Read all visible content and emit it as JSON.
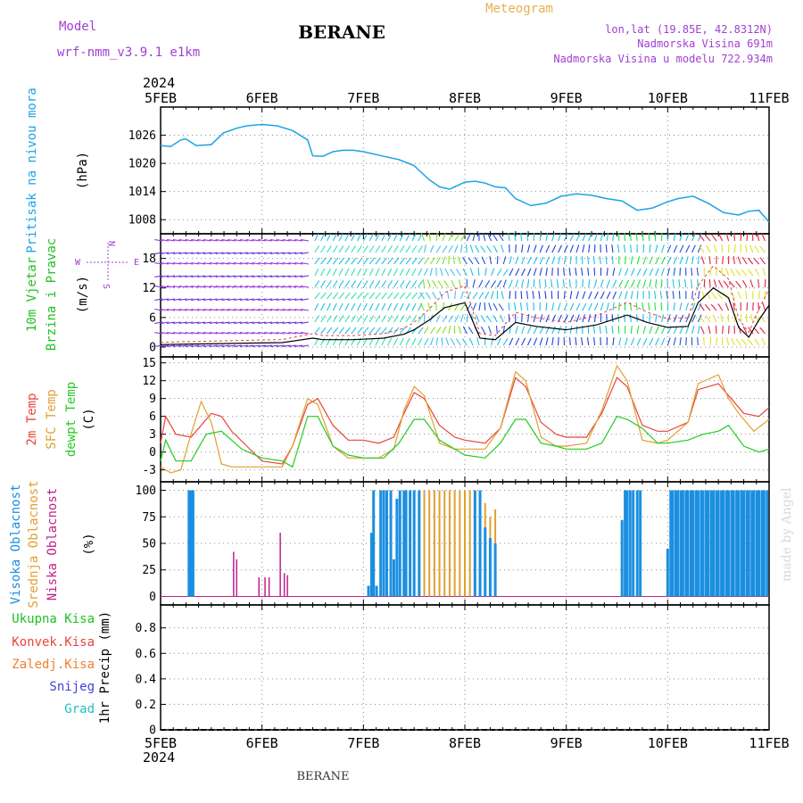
{
  "header": {
    "title": "BERANE",
    "meteogram": "Meteogram",
    "model_label": "Model",
    "model_name": "wrf-nmm_v3.9.1  e1km",
    "lonlat": "lon,lat (19.85E, 42.8312N)",
    "elevation": "Nadmorska Visina 691m",
    "model_elevation": "Nadmorska Visina u modelu 722.934m",
    "watermark": "made by Angel",
    "footer": "BERANE"
  },
  "colors": {
    "pressure": "#1ba3e6",
    "wind_label": "#20c020",
    "temp_2m": "#e8443a",
    "temp_sfc": "#e0a030",
    "dewpoint": "#22cc22",
    "cloud_high": "#1b8fe0",
    "cloud_mid": "#e0a030",
    "cloud_low": "#c0208a",
    "model_purple": "#a040d0",
    "meteogram_orange": "#e6b050"
  },
  "chart_data": [
    {
      "type": "line",
      "panel": "pressure",
      "year_top": "2024",
      "year_bottom": "2024",
      "date_ticks": [
        "5FEB",
        "6FEB",
        "7FEB",
        "8FEB",
        "9FEB",
        "10FEB",
        "11FEB"
      ],
      "ylabel_lines": [
        "Pritisak na nivou mora",
        "(hPa)"
      ],
      "yticks": [
        "1026",
        "1020",
        "1014",
        "1008"
      ],
      "ylim": [
        1005,
        1032
      ],
      "series": [
        {
          "x": [
            0,
            0.1,
            0.2,
            0.25,
            0.35,
            0.5,
            0.62,
            0.75,
            0.85,
            1.0,
            1.15,
            1.3,
            1.45,
            1.5,
            1.6,
            1.7,
            1.8,
            1.9,
            2.0,
            2.2,
            2.35,
            2.5,
            2.55,
            2.65,
            2.75,
            2.85,
            2.95,
            3.0,
            3.1,
            3.2,
            3.3,
            3.4,
            3.5,
            3.65,
            3.8,
            3.95,
            4.1,
            4.25,
            4.4,
            4.55,
            4.7,
            4.85,
            5.0,
            5.1,
            5.25,
            5.4,
            5.55,
            5.7,
            5.8,
            5.9,
            6.0
          ],
          "y": [
            1023.8,
            1023.6,
            1025.0,
            1025.2,
            1023.8,
            1024.0,
            1026.5,
            1027.5,
            1028.0,
            1028.3,
            1028.0,
            1027.0,
            1025.0,
            1021.6,
            1021.5,
            1022.5,
            1022.8,
            1022.8,
            1022.5,
            1021.5,
            1020.8,
            1019.5,
            1018.5,
            1016.5,
            1015.0,
            1014.5,
            1015.5,
            1016.0,
            1016.2,
            1015.8,
            1015.0,
            1014.8,
            1012.5,
            1011.0,
            1011.5,
            1013.0,
            1013.5,
            1013.2,
            1012.5,
            1012.0,
            1010.0,
            1010.5,
            1011.8,
            1012.5,
            1013.0,
            1011.5,
            1009.5,
            1009.0,
            1009.8,
            1010.0,
            1007.5
          ]
        }
      ]
    },
    {
      "type": "line",
      "panel": "wind",
      "ylabel_lines": [
        "10m Vjetar",
        "Brzina i Pravac",
        "(m/s)"
      ],
      "compass": [
        "N",
        "E",
        "W",
        "S"
      ],
      "yticks": [
        "18",
        "12",
        "6",
        "0"
      ],
      "ylim": [
        -2,
        23
      ],
      "series": [
        {
          "x": [
            0,
            0.3,
            0.6,
            0.9,
            1.2,
            1.5,
            1.6,
            1.9,
            2.2,
            2.4,
            2.5,
            2.65,
            2.8,
            3.0,
            3.15,
            3.3,
            3.5,
            3.7,
            4.0,
            4.3,
            4.6,
            4.8,
            5.0,
            5.2,
            5.3,
            5.45,
            5.6,
            5.7,
            5.8,
            5.9,
            6.0
          ],
          "y": [
            0.5,
            0.6,
            0.7,
            0.8,
            0.9,
            1.8,
            1.5,
            1.5,
            1.8,
            2.6,
            3.5,
            5.5,
            8.0,
            9.0,
            1.8,
            1.5,
            5.0,
            4.2,
            3.5,
            4.5,
            6.5,
            5.0,
            4.0,
            4.2,
            9.0,
            12.0,
            10.0,
            4.0,
            2.0,
            5.5,
            8.5
          ]
        }
      ]
    },
    {
      "type": "line",
      "panel": "temperature",
      "ylabel_lines": [
        "2m Temp",
        "SFC Temp",
        "dewpt Temp",
        "(C)"
      ],
      "yticks": [
        "15",
        "12",
        "9",
        "6",
        "3",
        "0",
        "-3"
      ],
      "ylim": [
        -5,
        16
      ],
      "series": [
        {
          "name": "2m Temp",
          "x": [
            0,
            0.05,
            0.15,
            0.3,
            0.4,
            0.5,
            0.6,
            0.7,
            0.85,
            1.0,
            1.2,
            1.3,
            1.45,
            1.55,
            1.7,
            1.85,
            2.0,
            2.15,
            2.3,
            2.4,
            2.5,
            2.6,
            2.75,
            2.9,
            3.0,
            3.2,
            3.35,
            3.5,
            3.6,
            3.75,
            3.9,
            4.0,
            4.2,
            4.35,
            4.5,
            4.6,
            4.75,
            4.9,
            5.0,
            5.2,
            5.3,
            5.5,
            5.6,
            5.75,
            5.9,
            6.0
          ],
          "y": [
            1.5,
            6.0,
            3.0,
            2.5,
            4.5,
            6.5,
            6.0,
            3.5,
            1.0,
            -1.5,
            -2.0,
            1.0,
            8.0,
            9.0,
            4.5,
            2.0,
            2.0,
            1.5,
            2.5,
            6.5,
            10.0,
            9.0,
            4.5,
            2.5,
            2.0,
            1.5,
            4.0,
            12.5,
            11.0,
            5.0,
            3.0,
            2.5,
            2.5,
            6.5,
            12.5,
            11.0,
            4.5,
            3.5,
            3.5,
            5.0,
            10.5,
            11.5,
            9.5,
            6.5,
            6.0,
            7.5
          ]
        },
        {
          "name": "SFC Temp",
          "x": [
            0,
            0.1,
            0.2,
            0.3,
            0.4,
            0.5,
            0.6,
            0.7,
            0.8,
            1.0,
            1.2,
            1.3,
            1.45,
            1.55,
            1.7,
            1.85,
            2.0,
            2.15,
            2.3,
            2.4,
            2.5,
            2.6,
            2.75,
            2.9,
            3.0,
            3.2,
            3.35,
            3.5,
            3.6,
            3.75,
            3.9,
            4.0,
            4.2,
            4.35,
            4.5,
            4.6,
            4.75,
            4.9,
            5.0,
            5.2,
            5.3,
            5.5,
            5.6,
            5.7,
            5.85,
            6.0
          ],
          "y": [
            -2.5,
            -3.5,
            -3.0,
            3.0,
            8.5,
            5.0,
            -2.0,
            -2.5,
            -2.5,
            -2.5,
            -2.5,
            1.0,
            9.0,
            8.0,
            1.0,
            -1.0,
            -1.0,
            -1.0,
            0.5,
            7.0,
            11.0,
            9.5,
            1.5,
            0.5,
            0.5,
            0.5,
            4.0,
            13.5,
            12.0,
            2.5,
            1.0,
            1.0,
            1.5,
            7.0,
            14.5,
            12.0,
            2.0,
            1.5,
            2.0,
            5.0,
            11.5,
            13.0,
            9.0,
            6.5,
            3.5,
            5.5
          ]
        },
        {
          "name": "dewpt Temp",
          "x": [
            0,
            0.05,
            0.15,
            0.3,
            0.45,
            0.6,
            0.8,
            1.0,
            1.2,
            1.3,
            1.45,
            1.55,
            1.7,
            1.85,
            2.0,
            2.2,
            2.35,
            2.5,
            2.6,
            2.75,
            2.9,
            3.0,
            3.2,
            3.35,
            3.5,
            3.6,
            3.75,
            3.9,
            4.0,
            4.2,
            4.35,
            4.5,
            4.6,
            4.75,
            4.9,
            5.0,
            5.2,
            5.35,
            5.5,
            5.6,
            5.75,
            5.9,
            6.0
          ],
          "y": [
            -1.5,
            2.0,
            -1.5,
            -1.5,
            3.0,
            3.5,
            0.5,
            -1.0,
            -1.5,
            -2.5,
            6.0,
            6.0,
            1.0,
            -0.5,
            -1.0,
            -1.0,
            1.5,
            5.5,
            5.5,
            2.0,
            0.5,
            -0.5,
            -1.0,
            1.5,
            5.5,
            5.5,
            1.5,
            1.0,
            0.5,
            0.5,
            1.5,
            6.0,
            5.5,
            4.0,
            1.5,
            1.5,
            2.0,
            3.0,
            3.5,
            4.5,
            1.0,
            0.0,
            0.5
          ]
        }
      ]
    },
    {
      "type": "bar",
      "panel": "cloud",
      "ylabel_lines": [
        "Visoka Oblacnost",
        "Srednja Oblacnost",
        "Niska Oblacnost",
        "(%)"
      ],
      "yticks": [
        "100",
        "75",
        "50",
        "25",
        "0"
      ],
      "ylim": [
        -8,
        108
      ],
      "series": [
        {
          "name": "Visoka Oblacnost",
          "x": [
            0.28,
            0.3,
            0.32,
            2.05,
            2.08,
            2.1,
            2.13,
            2.17,
            2.2,
            2.23,
            2.27,
            2.3,
            2.33,
            2.36,
            2.4,
            2.42,
            2.46,
            2.5,
            2.55,
            3.1,
            3.15,
            3.2,
            3.25,
            3.3,
            4.55,
            4.58,
            4.6,
            4.63,
            4.66,
            4.7,
            4.73,
            5.0,
            5.03,
            5.05,
            5.08,
            5.1,
            5.13,
            5.15,
            5.18,
            5.2,
            5.23,
            5.25,
            5.28,
            5.3,
            5.33,
            5.35,
            5.38,
            5.4,
            5.43,
            5.45,
            5.48,
            5.5,
            5.53,
            5.55,
            5.58,
            5.6,
            5.63,
            5.65,
            5.68,
            5.7,
            5.73,
            5.75,
            5.78,
            5.8,
            5.83,
            5.85,
            5.88,
            5.9,
            5.93,
            5.95,
            5.98
          ],
          "values": [
            100,
            100,
            100,
            10,
            60,
            100,
            10,
            100,
            100,
            100,
            100,
            35,
            92,
            100,
            100,
            100,
            100,
            100,
            100,
            100,
            100,
            65,
            55,
            50,
            72,
            100,
            100,
            100,
            100,
            100,
            100,
            45,
            100,
            100,
            100,
            100,
            100,
            100,
            100,
            100,
            100,
            100,
            100,
            100,
            100,
            100,
            100,
            100,
            100,
            100,
            100,
            100,
            100,
            100,
            100,
            100,
            100,
            100,
            100,
            100,
            100,
            100,
            100,
            100,
            100,
            100,
            100,
            100,
            100,
            100,
            100
          ]
        },
        {
          "name": "Srednja Oblacnost",
          "x": [
            2.5,
            2.55,
            2.6,
            2.65,
            2.7,
            2.75,
            2.8,
            2.85,
            2.9,
            2.95,
            3.0,
            3.05,
            3.1,
            3.15,
            3.2,
            3.25,
            3.3
          ],
          "values": [
            100,
            100,
            100,
            100,
            100,
            100,
            100,
            100,
            100,
            100,
            100,
            100,
            100,
            95,
            88,
            75,
            82
          ]
        },
        {
          "name": "Niska Oblacnost",
          "x": [
            0.72,
            0.75,
            0.97,
            1.03,
            1.07,
            1.18,
            1.22,
            1.25
          ],
          "values": [
            42,
            35,
            18,
            18,
            18,
            60,
            22,
            20
          ]
        }
      ]
    },
    {
      "type": "bar",
      "panel": "precipitation",
      "ylabel_lines": [
        "1hr Precip (mm)"
      ],
      "legend": [
        "Ukupna Kisa",
        "Konvek.Kisa",
        "Zaledj.Kisa",
        "Snijeg",
        "Grad"
      ],
      "legend_colors": [
        "#20c020",
        "#e8443a",
        "#f08030",
        "#4040e0",
        "#20c0c0"
      ],
      "yticks": [
        "0.8",
        "0.6",
        "0.4",
        "0.2",
        "0"
      ],
      "ylim": [
        0,
        0.98
      ],
      "series": []
    }
  ]
}
